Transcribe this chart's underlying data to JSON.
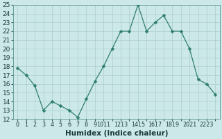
{
  "x": [
    0,
    1,
    2,
    3,
    4,
    5,
    6,
    7,
    8,
    9,
    10,
    11,
    12,
    13,
    14,
    15,
    16,
    17,
    18,
    19,
    20,
    21,
    22,
    23
  ],
  "y": [
    17.8,
    17.0,
    15.8,
    13.0,
    14.0,
    13.5,
    13.0,
    12.2,
    14.3,
    16.3,
    18.0,
    20.0,
    22.0,
    22.0,
    25.0,
    22.0,
    23.0,
    23.8,
    22.0,
    22.0,
    20.0,
    16.5,
    16.0,
    14.8
  ],
  "xlabel": "Humidex (Indice chaleur)",
  "ylim": [
    12,
    25
  ],
  "xlim_min": -0.5,
  "xlim_max": 23.5,
  "yticks": [
    12,
    13,
    14,
    15,
    16,
    17,
    18,
    19,
    20,
    21,
    22,
    23,
    24,
    25
  ],
  "line_color": "#2e7d6e",
  "marker": "D",
  "marker_size": 2.5,
  "bg_color": "#cce8e8",
  "grid_color": "#aacece",
  "label_fontsize": 6.5,
  "xlabel_fontsize": 7.5
}
